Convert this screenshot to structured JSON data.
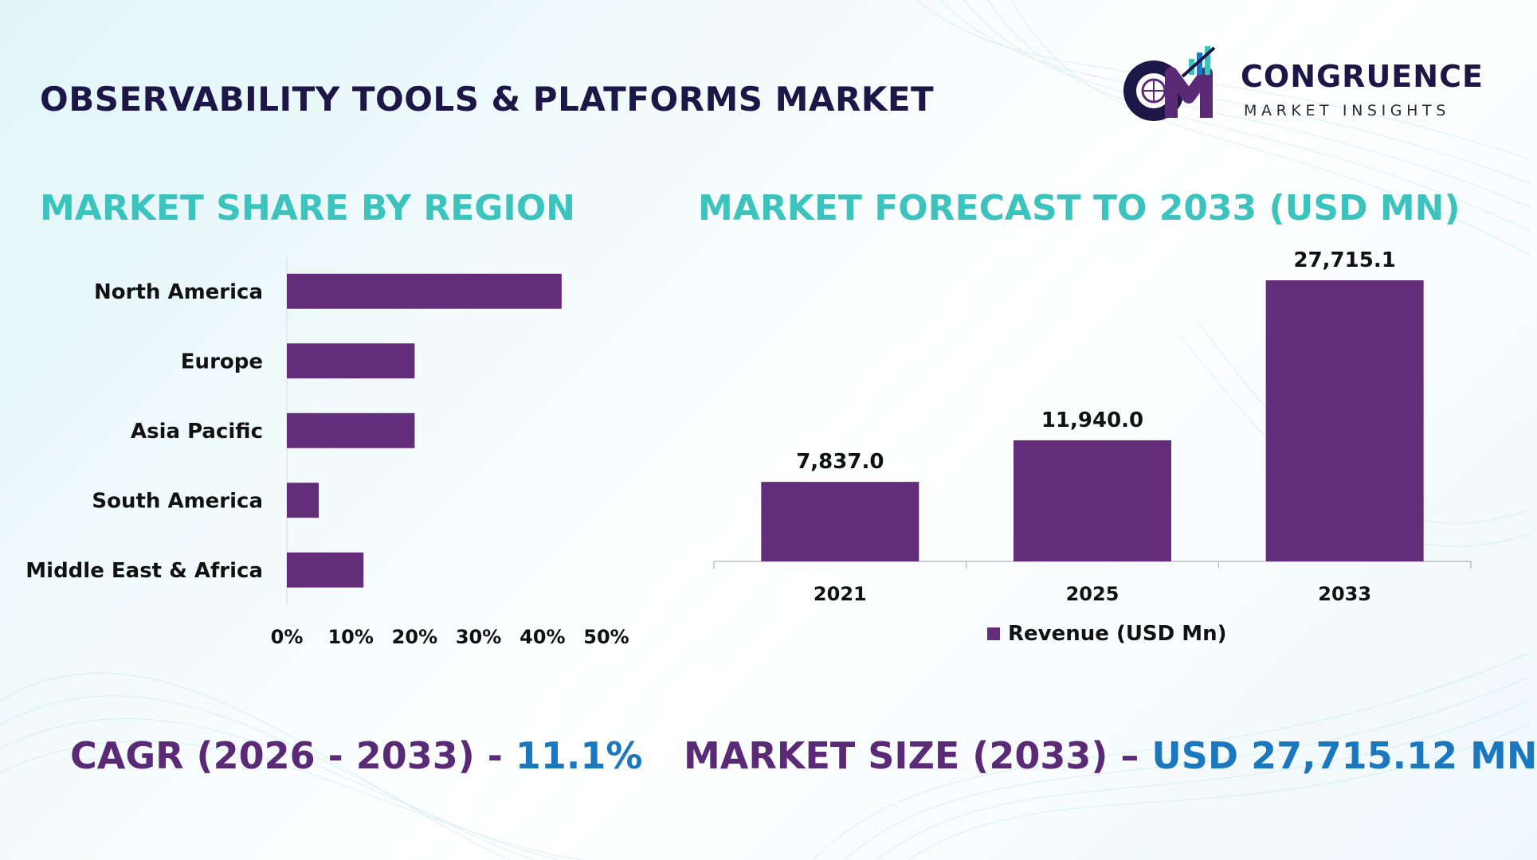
{
  "header": {
    "title": "OBSERVABILITY TOOLS & PLATFORMS MARKET"
  },
  "logo": {
    "name": "CONGRUENCE",
    "tagline": "MARKET INSIGHTS"
  },
  "colors": {
    "bar": "#642d7a",
    "teal_heading": "#3cc3bd",
    "navy_text": "#1d1747",
    "footer_label": "#5b2a76",
    "footer_value": "#1c78be"
  },
  "chart_data": [
    {
      "type": "bar",
      "orientation": "horizontal",
      "title": "MARKET SHARE BY REGION",
      "categories": [
        "North America",
        "Europe",
        "Asia Pacific",
        "South America",
        "Middle East & Africa"
      ],
      "values": [
        43,
        20,
        20,
        5,
        12
      ],
      "xlim": [
        0,
        50
      ],
      "xticks": [
        "0%",
        "10%",
        "20%",
        "30%",
        "40%",
        "50%"
      ],
      "grid": false,
      "color": "#642d7a"
    },
    {
      "type": "bar",
      "orientation": "vertical",
      "title": "MARKET FORECAST TO 2033 (USD MN)",
      "categories": [
        "2021",
        "2025",
        "2033"
      ],
      "series": [
        {
          "name": "Revenue (USD Mn)",
          "values": [
            7837.0,
            11940.0,
            27715.1
          ]
        }
      ],
      "data_labels": [
        "7,837.0",
        "11,940.0",
        "27,715.1"
      ],
      "legend": "bottom",
      "grid": false,
      "color": "#642d7a"
    }
  ],
  "footer": {
    "cagr_label": "CAGR (2026 - 2033) - ",
    "cagr_value": "11.1%",
    "size_label": "MARKET SIZE (2033) – ",
    "size_value": "USD 27,715.12 MN"
  }
}
